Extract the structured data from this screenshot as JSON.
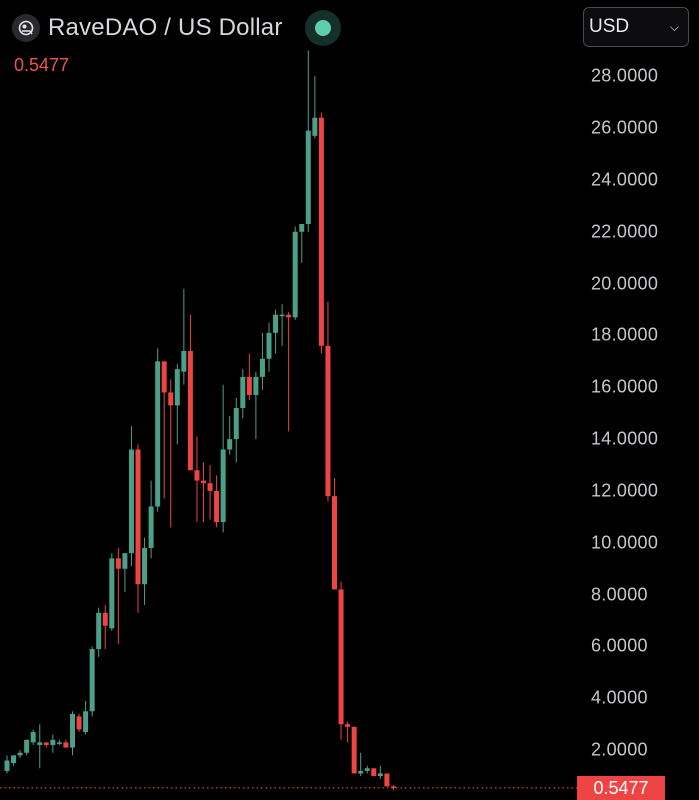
{
  "header": {
    "title": "RaveDAO / US Dollar",
    "logo_icon": "ravedao-logo-icon",
    "status_icon": "market-status-dot-icon",
    "last_price": "0.5477"
  },
  "currency_select": {
    "value": "USD",
    "chevron_icon": "chevron-down-icon"
  },
  "price_tag": "0.5477",
  "colors": {
    "up": "#4e9f8a",
    "down": "#ef4444",
    "background": "#000000",
    "axis_text": "#c8c8cc",
    "status_dot": "#5fcfaa"
  },
  "axis": {
    "labels": [
      "28.0000",
      "26.0000",
      "24.0000",
      "22.0000",
      "20.0000",
      "18.0000",
      "16.0000",
      "14.0000",
      "12.0000",
      "10.0000",
      "8.0000",
      "6.0000",
      "4.0000",
      "2.0000"
    ]
  },
  "chart_data": {
    "type": "candlestick",
    "title": "RaveDAO / US Dollar",
    "xlabel": "",
    "ylabel": "USD",
    "ylim": [
      0,
      29
    ],
    "grid": false,
    "last_price": 0.5477,
    "y_ticks": [
      2,
      4,
      6,
      8,
      10,
      12,
      14,
      16,
      18,
      20,
      22,
      24,
      26,
      28
    ],
    "candles": [
      {
        "o": 1.2,
        "h": 1.8,
        "l": 1.1,
        "c": 1.6
      },
      {
        "o": 1.5,
        "h": 1.8,
        "l": 1.4,
        "c": 1.8
      },
      {
        "o": 1.8,
        "h": 2.0,
        "l": 1.7,
        "c": 1.9
      },
      {
        "o": 1.9,
        "h": 2.4,
        "l": 1.8,
        "c": 2.4
      },
      {
        "o": 2.3,
        "h": 2.8,
        "l": 2.2,
        "c": 2.7
      },
      {
        "o": 2.2,
        "h": 3.0,
        "l": 1.3,
        "c": 2.3
      },
      {
        "o": 2.3,
        "h": 2.3,
        "l": 2.1,
        "c": 2.2
      },
      {
        "o": 2.2,
        "h": 2.6,
        "l": 1.9,
        "c": 2.4
      },
      {
        "o": 2.3,
        "h": 2.4,
        "l": 2.2,
        "c": 2.3
      },
      {
        "o": 2.3,
        "h": 2.4,
        "l": 2.1,
        "c": 2.1
      },
      {
        "o": 2.1,
        "h": 3.5,
        "l": 1.8,
        "c": 3.4
      },
      {
        "o": 3.3,
        "h": 3.4,
        "l": 2.7,
        "c": 2.8
      },
      {
        "o": 2.7,
        "h": 3.9,
        "l": 2.6,
        "c": 3.5
      },
      {
        "o": 3.5,
        "h": 6.0,
        "l": 3.3,
        "c": 5.9
      },
      {
        "o": 5.9,
        "h": 7.5,
        "l": 5.6,
        "c": 7.3
      },
      {
        "o": 7.3,
        "h": 7.6,
        "l": 5.9,
        "c": 6.8
      },
      {
        "o": 6.7,
        "h": 9.6,
        "l": 6.6,
        "c": 9.4
      },
      {
        "o": 9.4,
        "h": 9.8,
        "l": 6.1,
        "c": 9.0
      },
      {
        "o": 9.0,
        "h": 9.6,
        "l": 8.1,
        "c": 9.6
      },
      {
        "o": 9.6,
        "h": 14.5,
        "l": 9.1,
        "c": 13.6
      },
      {
        "o": 13.6,
        "h": 13.8,
        "l": 7.3,
        "c": 8.4
      },
      {
        "o": 8.4,
        "h": 10.2,
        "l": 7.6,
        "c": 9.8
      },
      {
        "o": 9.8,
        "h": 12.4,
        "l": 9.4,
        "c": 11.4
      },
      {
        "o": 11.4,
        "h": 17.5,
        "l": 11.2,
        "c": 17.0
      },
      {
        "o": 17.0,
        "h": 17.0,
        "l": 11.7,
        "c": 15.8
      },
      {
        "o": 15.8,
        "h": 16.3,
        "l": 10.6,
        "c": 15.3
      },
      {
        "o": 15.3,
        "h": 16.9,
        "l": 13.8,
        "c": 16.7
      },
      {
        "o": 16.6,
        "h": 19.8,
        "l": 16.1,
        "c": 17.4
      },
      {
        "o": 17.4,
        "h": 18.8,
        "l": 12.8,
        "c": 12.8
      },
      {
        "o": 12.8,
        "h": 14.1,
        "l": 10.8,
        "c": 12.4
      },
      {
        "o": 12.4,
        "h": 13.1,
        "l": 10.8,
        "c": 12.3
      },
      {
        "o": 12.3,
        "h": 13.0,
        "l": 10.9,
        "c": 12.0
      },
      {
        "o": 12.0,
        "h": 12.6,
        "l": 10.6,
        "c": 10.8
      },
      {
        "o": 10.8,
        "h": 16.1,
        "l": 10.4,
        "c": 13.6
      },
      {
        "o": 13.6,
        "h": 14.9,
        "l": 13.4,
        "c": 14.0
      },
      {
        "o": 14.0,
        "h": 15.6,
        "l": 13.1,
        "c": 15.2
      },
      {
        "o": 15.2,
        "h": 16.7,
        "l": 14.8,
        "c": 16.4
      },
      {
        "o": 16.4,
        "h": 17.3,
        "l": 15.5,
        "c": 15.7
      },
      {
        "o": 15.7,
        "h": 16.6,
        "l": 14.0,
        "c": 16.4
      },
      {
        "o": 16.4,
        "h": 18.1,
        "l": 15.9,
        "c": 17.1
      },
      {
        "o": 17.1,
        "h": 18.5,
        "l": 16.6,
        "c": 18.1
      },
      {
        "o": 18.1,
        "h": 19.0,
        "l": 17.3,
        "c": 18.8
      },
      {
        "o": 18.8,
        "h": 19.2,
        "l": 17.6,
        "c": 18.8
      },
      {
        "o": 18.8,
        "h": 18.9,
        "l": 14.3,
        "c": 18.7
      },
      {
        "o": 18.7,
        "h": 22.2,
        "l": 18.6,
        "c": 22.0
      },
      {
        "o": 22.0,
        "h": 22.3,
        "l": 20.8,
        "c": 22.3
      },
      {
        "o": 22.3,
        "h": 29.0,
        "l": 22.0,
        "c": 25.9
      },
      {
        "o": 25.7,
        "h": 28.0,
        "l": 25.6,
        "c": 26.4
      },
      {
        "o": 26.4,
        "h": 26.6,
        "l": 17.3,
        "c": 17.6
      },
      {
        "o": 17.6,
        "h": 19.3,
        "l": 11.6,
        "c": 11.8
      },
      {
        "o": 11.8,
        "h": 12.5,
        "l": 8.7,
        "c": 8.2
      },
      {
        "o": 8.2,
        "h": 8.5,
        "l": 2.4,
        "c": 3.0
      },
      {
        "o": 3.0,
        "h": 3.1,
        "l": 2.3,
        "c": 2.9
      },
      {
        "o": 2.9,
        "h": 2.9,
        "l": 1.1,
        "c": 1.1
      },
      {
        "o": 1.1,
        "h": 1.9,
        "l": 1.0,
        "c": 1.2
      },
      {
        "o": 1.2,
        "h": 1.4,
        "l": 1.1,
        "c": 1.3
      },
      {
        "o": 1.3,
        "h": 1.3,
        "l": 1.0,
        "c": 1.0
      },
      {
        "o": 1.0,
        "h": 1.4,
        "l": 0.9,
        "c": 1.1
      },
      {
        "o": 1.1,
        "h": 1.1,
        "l": 0.6,
        "c": 0.6
      },
      {
        "o": 0.6,
        "h": 0.65,
        "l": 0.45,
        "c": 0.5477
      }
    ]
  }
}
